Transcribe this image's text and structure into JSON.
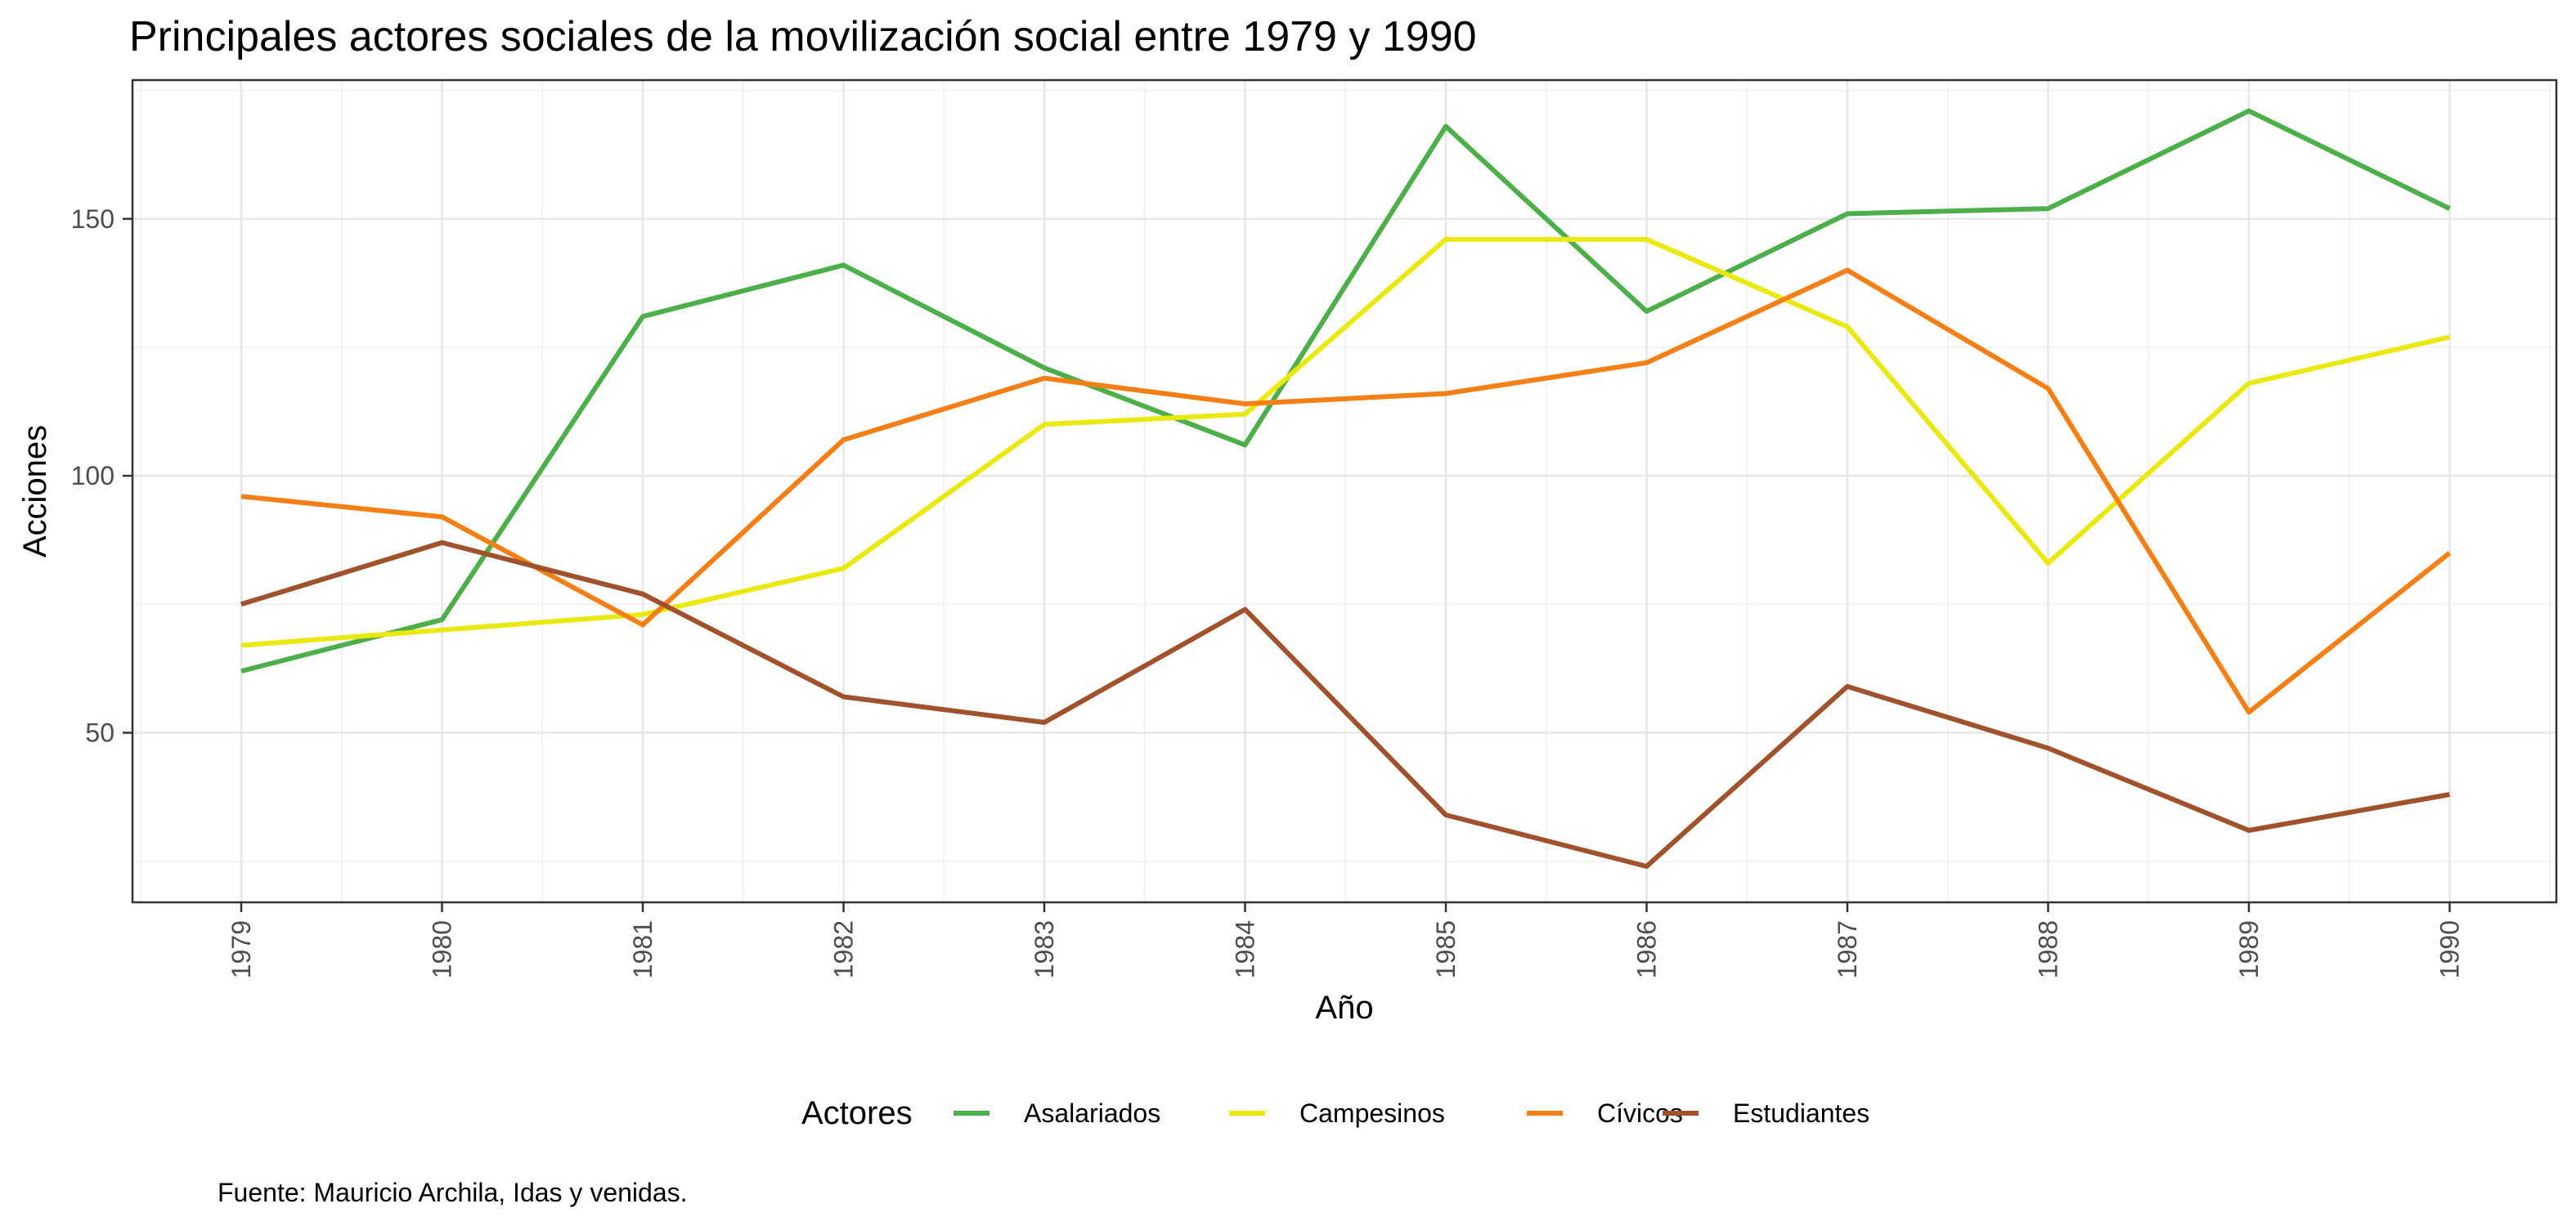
{
  "chart_data": {
    "type": "line",
    "title": "Principales actores sociales de la movilización social entre 1979 y 1990",
    "xlabel": "Año",
    "ylabel": "Acciones",
    "x": [
      "1979",
      "1980",
      "1981",
      "1982",
      "1983",
      "1984",
      "1985",
      "1986",
      "1987",
      "1988",
      "1989",
      "1990"
    ],
    "ylim": [
      17,
      177
    ],
    "yticks": [
      50,
      100,
      150
    ],
    "grid": true,
    "legend": {
      "title": "Actores",
      "position": "bottom"
    },
    "series": [
      {
        "name": "Asalariados",
        "color": "#4daf4a",
        "values": [
          62,
          72,
          131,
          141,
          121,
          106,
          168,
          132,
          151,
          152,
          171,
          152
        ]
      },
      {
        "name": "Campesinos",
        "color": "#e9e910",
        "values": [
          67,
          70,
          73,
          82,
          110,
          112,
          146,
          146,
          129,
          83,
          118,
          127
        ]
      },
      {
        "name": "Cívicos",
        "color": "#f57f17",
        "values": [
          96,
          92,
          71,
          107,
          119,
          114,
          116,
          122,
          140,
          117,
          54,
          85
        ]
      },
      {
        "name": "Estudiantes",
        "color": "#a0522d",
        "values": [
          75,
          87,
          77,
          57,
          52,
          74,
          34,
          24,
          59,
          47,
          31,
          38
        ]
      }
    ],
    "caption": "Fuente: Mauricio Archila, Idas y venidas."
  }
}
